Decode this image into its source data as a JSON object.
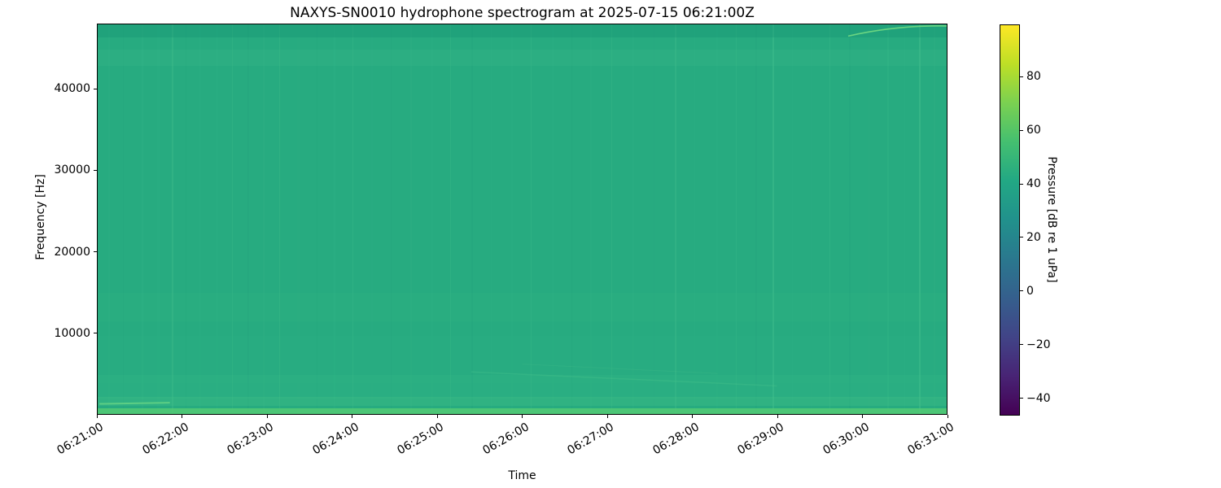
{
  "figure": {
    "title": "NAXYS-SN0010 hydrophone spectrogram at 2025-07-15 06:21:00Z",
    "xlabel": "Time",
    "ylabel": "Frequency [Hz]",
    "background_color": "#ffffff",
    "text_color": "#000000"
  },
  "chart_data": {
    "type": "heatmap",
    "subtype": "spectrogram",
    "title": "NAXYS-SN0010 hydrophone spectrogram at 2025-07-15 06:21:00Z",
    "xlabel": "Time",
    "ylabel": "Frequency [Hz]",
    "x_tick_labels": [
      "06:21:00",
      "06:22:00",
      "06:23:00",
      "06:24:00",
      "06:25:00",
      "06:26:00",
      "06:27:00",
      "06:28:00",
      "06:29:00",
      "06:30:00",
      "06:31:00"
    ],
    "x_tick_rotation_deg": 30,
    "y_tick_values": [
      10000,
      20000,
      30000,
      40000
    ],
    "ylim": [
      0,
      48000
    ],
    "grid": false,
    "colormap": "viridis",
    "base_color": "#27ab80",
    "colorbar": {
      "label": "Pressure [dB re 1 uPa]",
      "tick_values": [
        80,
        60,
        40,
        20,
        0,
        -20,
        -40
      ],
      "vmin": -46.5,
      "vmax": 99.5,
      "position": "right",
      "gradient_stops_top_to_bottom": [
        {
          "pos": 0,
          "color": "#fde725"
        },
        {
          "pos": 10,
          "color": "#bddf26"
        },
        {
          "pos": 20,
          "color": "#7ad151"
        },
        {
          "pos": 30,
          "color": "#44bf70"
        },
        {
          "pos": 40,
          "color": "#22a884"
        },
        {
          "pos": 50,
          "color": "#21918c"
        },
        {
          "pos": 60,
          "color": "#2a788e"
        },
        {
          "pos": 70,
          "color": "#355f8d"
        },
        {
          "pos": 80,
          "color": "#414487"
        },
        {
          "pos": 90,
          "color": "#482475"
        },
        {
          "pos": 100,
          "color": "#440154"
        }
      ]
    },
    "features": [
      {
        "name": "broadband-background",
        "description": "near-uniform mid-level broadband noise across 0-48 kHz for the whole 10 min record",
        "approx_level_db": 50
      },
      {
        "name": "low-frequency-noise-band",
        "description": "brighter narrow band below about 1.5 kHz along the entire time axis, brightest at the very bottom edge and near 06:21"
      },
      {
        "name": "rising-chirp-arc",
        "description": "thin bright arc sweeping up toward ~47.5 kHz between about 06:30 and 06:31"
      },
      {
        "name": "transient-vertical-striations",
        "description": "faint vertical stripes from short broadband transients throughout the record"
      },
      {
        "name": "weak-high-band",
        "description": "slightly brighter horizontal band near 44-46 kHz and slightly darker strip at the very top"
      }
    ],
    "texture": {
      "stripes": [
        {
          "x": 0.012,
          "w": 2,
          "c": "#33b487",
          "o": 0.2
        },
        {
          "x": 0.03,
          "w": 1,
          "c": "#1f9d77",
          "o": 0.18
        },
        {
          "x": 0.052,
          "w": 2,
          "c": "#35b688",
          "o": 0.22
        },
        {
          "x": 0.07,
          "w": 3,
          "c": "#35b688",
          "o": 0.14
        },
        {
          "x": 0.087,
          "w": 2,
          "c": "#45c18d",
          "o": 0.34
        },
        {
          "x": 0.104,
          "w": 1,
          "c": "#1f9d77",
          "o": 0.16
        },
        {
          "x": 0.12,
          "w": 2,
          "c": "#33b487",
          "o": 0.18
        },
        {
          "x": 0.139,
          "w": 3,
          "c": "#35b688",
          "o": 0.12
        },
        {
          "x": 0.158,
          "w": 1,
          "c": "#45c18d",
          "o": 0.25
        },
        {
          "x": 0.176,
          "w": 2,
          "c": "#1f9d77",
          "o": 0.15
        },
        {
          "x": 0.195,
          "w": 2,
          "c": "#35b688",
          "o": 0.2
        },
        {
          "x": 0.214,
          "w": 1,
          "c": "#45c18d",
          "o": 0.28
        },
        {
          "x": 0.235,
          "w": 3,
          "c": "#33b487",
          "o": 0.13
        },
        {
          "x": 0.258,
          "w": 1,
          "c": "#1f9d77",
          "o": 0.17
        },
        {
          "x": 0.278,
          "w": 2,
          "c": "#35b688",
          "o": 0.18
        },
        {
          "x": 0.3,
          "w": 1,
          "c": "#45c18d",
          "o": 0.24
        },
        {
          "x": 0.322,
          "w": 2,
          "c": "#33b487",
          "o": 0.14
        },
        {
          "x": 0.345,
          "w": 1,
          "c": "#1f9d77",
          "o": 0.15
        },
        {
          "x": 0.368,
          "w": 2,
          "c": "#35b688",
          "o": 0.2
        },
        {
          "x": 0.392,
          "w": 3,
          "c": "#33b487",
          "o": 0.11
        },
        {
          "x": 0.415,
          "w": 1,
          "c": "#45c18d",
          "o": 0.26
        },
        {
          "x": 0.44,
          "w": 2,
          "c": "#1f9d77",
          "o": 0.14
        },
        {
          "x": 0.463,
          "w": 1,
          "c": "#35b688",
          "o": 0.21
        },
        {
          "x": 0.487,
          "w": 2,
          "c": "#33b487",
          "o": 0.16
        },
        {
          "x": 0.51,
          "w": 1,
          "c": "#45c18d",
          "o": 0.23
        },
        {
          "x": 0.535,
          "w": 3,
          "c": "#35b688",
          "o": 0.12
        },
        {
          "x": 0.558,
          "w": 1,
          "c": "#1f9d77",
          "o": 0.16
        },
        {
          "x": 0.58,
          "w": 2,
          "c": "#33b487",
          "o": 0.19
        },
        {
          "x": 0.605,
          "w": 1,
          "c": "#45c18d",
          "o": 0.25
        },
        {
          "x": 0.63,
          "w": 2,
          "c": "#35b688",
          "o": 0.15
        },
        {
          "x": 0.655,
          "w": 1,
          "c": "#1f9d77",
          "o": 0.15
        },
        {
          "x": 0.68,
          "w": 2,
          "c": "#45c18d",
          "o": 0.3
        },
        {
          "x": 0.703,
          "w": 1,
          "c": "#33b487",
          "o": 0.18
        },
        {
          "x": 0.728,
          "w": 3,
          "c": "#35b688",
          "o": 0.12
        },
        {
          "x": 0.752,
          "w": 1,
          "c": "#45c18d",
          "o": 0.22
        },
        {
          "x": 0.775,
          "w": 2,
          "c": "#1f9d77",
          "o": 0.15
        },
        {
          "x": 0.795,
          "w": 2,
          "c": "#4cc690",
          "o": 0.36
        },
        {
          "x": 0.818,
          "w": 1,
          "c": "#35b688",
          "o": 0.18
        },
        {
          "x": 0.84,
          "w": 2,
          "c": "#33b487",
          "o": 0.14
        },
        {
          "x": 0.862,
          "w": 1,
          "c": "#45c18d",
          "o": 0.24
        },
        {
          "x": 0.885,
          "w": 2,
          "c": "#1f9d77",
          "o": 0.14
        },
        {
          "x": 0.908,
          "w": 1,
          "c": "#35b688",
          "o": 0.2
        },
        {
          "x": 0.93,
          "w": 2,
          "c": "#45c18d",
          "o": 0.18
        },
        {
          "x": 0.95,
          "w": 1,
          "c": "#33b487",
          "o": 0.22
        },
        {
          "x": 0.967,
          "w": 2,
          "c": "#4cc690",
          "o": 0.38
        },
        {
          "x": 0.985,
          "w": 2,
          "c": "#35b688",
          "o": 0.2
        }
      ],
      "bands": [
        {
          "y": 0.0,
          "h": 0.034,
          "c": "#128e71",
          "o": 0.3
        },
        {
          "y": 0.064,
          "h": 0.042,
          "c": "#3fc08b",
          "o": 0.2
        },
        {
          "y": 0.688,
          "h": 0.075,
          "c": "#38bb87",
          "o": 0.12
        },
        {
          "y": 0.8,
          "h": 0.12,
          "c": "#35b885",
          "o": 0.1
        },
        {
          "y": 0.9,
          "h": 0.06,
          "c": "#3fc08b",
          "o": 0.15
        },
        {
          "y": 0.957,
          "h": 0.022,
          "c": "#46c487",
          "o": 0.3
        },
        {
          "y": 0.986,
          "h": 0.014,
          "c": "#54ca74",
          "o": 0.85
        }
      ],
      "streaks": [
        {
          "x1": 0.002,
          "y1": 0.974,
          "x2": 0.085,
          "y2": 0.971,
          "c": "#68d584",
          "o": 0.8,
          "w": 2
        },
        {
          "x1": 0.44,
          "y1": 0.892,
          "x2": 0.8,
          "y2": 0.928,
          "c": "#4cc68f",
          "o": 0.3,
          "w": 1.5
        },
        {
          "x1": 0.5,
          "y1": 0.872,
          "x2": 0.73,
          "y2": 0.896,
          "c": "#4cc68f",
          "o": 0.22,
          "w": 1
        }
      ],
      "arc": {
        "p0": [
          0.884,
          0.03
        ],
        "c": [
          0.94,
          0.002
        ],
        "p1": [
          1.0,
          0.004
        ],
        "color": "#6fd882",
        "width": 1.6,
        "opacity": 0.95
      }
    }
  }
}
